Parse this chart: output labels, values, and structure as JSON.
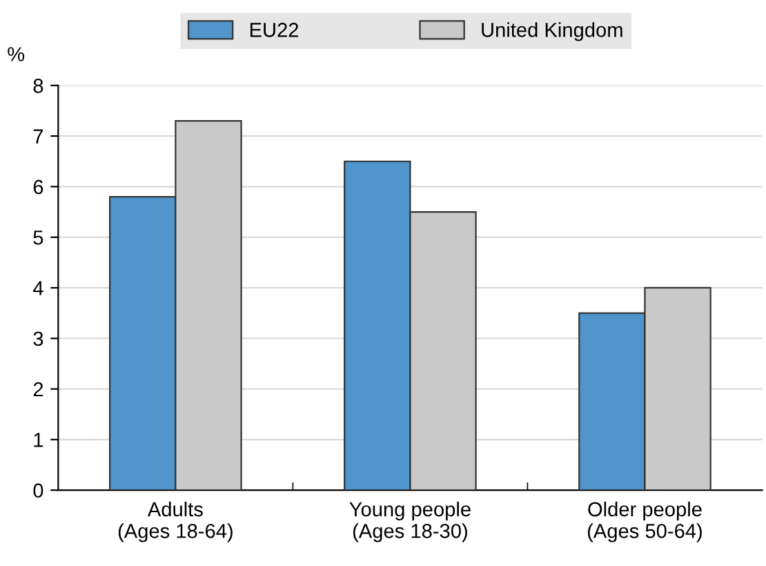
{
  "chart_data": {
    "type": "bar",
    "ylabel": "%",
    "categories": [
      "Adults\n(Ages 18-64)",
      "Young people\n(Ages 18-30)",
      "Older people\n(Ages 50-64)"
    ],
    "series": [
      {
        "name": "EU22",
        "color": "#4f95cc",
        "values": [
          5.8,
          6.5,
          3.5
        ]
      },
      {
        "name": "United Kingdom",
        "color": "#c9c9c9",
        "values": [
          7.3,
          5.5,
          4.0
        ]
      }
    ],
    "ylim": [
      0,
      8
    ],
    "yticks": [
      0,
      1,
      2,
      3,
      4,
      5,
      6,
      7,
      8
    ],
    "grid": "y",
    "legend": "top"
  }
}
